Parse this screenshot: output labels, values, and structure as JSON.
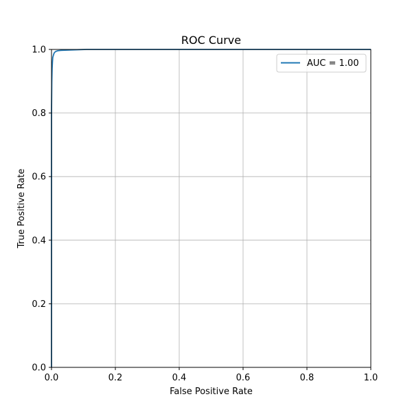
{
  "chart_data": {
    "type": "line",
    "title": "ROC Curve",
    "xlabel": "False Positive Rate",
    "ylabel": "True Positive Rate",
    "xlim": [
      0,
      1
    ],
    "ylim": [
      0,
      1
    ],
    "xticks": [
      "0.0",
      "0.2",
      "0.4",
      "0.6",
      "0.8",
      "1.0"
    ],
    "yticks": [
      "0.0",
      "0.2",
      "0.4",
      "0.6",
      "0.8",
      "1.0"
    ],
    "xtick_values": [
      0,
      0.2,
      0.4,
      0.6,
      0.8,
      1.0
    ],
    "ytick_values": [
      0,
      0.2,
      0.4,
      0.6,
      0.8,
      1.0
    ],
    "grid": true,
    "legend_position": "top-right",
    "series": [
      {
        "name": "AUC = 1.00",
        "color": "#1f77b4",
        "x": [
          0.0,
          0.0,
          0.001,
          0.002,
          0.003,
          0.004,
          0.006,
          0.008,
          0.01,
          0.014,
          0.02,
          0.03,
          0.05,
          0.08,
          0.11,
          1.0
        ],
        "y": [
          0.0,
          0.8,
          0.9,
          0.94,
          0.96,
          0.975,
          0.982,
          0.988,
          0.991,
          0.994,
          0.996,
          0.997,
          0.998,
          0.999,
          1.0,
          1.0
        ]
      }
    ]
  }
}
